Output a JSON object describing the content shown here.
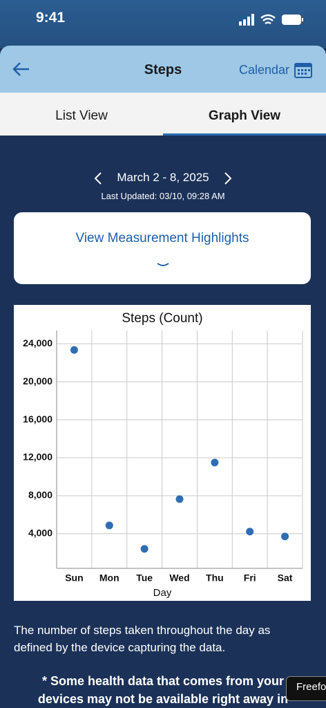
{
  "status": {
    "time": "9:41"
  },
  "header": {
    "title": "Steps",
    "calendar": "Calendar"
  },
  "tabs": [
    "List View",
    "Graph View"
  ],
  "date_range": "March 2 - 8, 2025",
  "last_updated": "Last Updated:  03/10, 09:28 AM",
  "highlights": "View Measurement Highlights",
  "description": [
    "The number of steps taken throughout the day as",
    "defined by the device capturing the data."
  ],
  "footnote": [
    "* Some health data that comes from your",
    "devices may not be available right away in"
  ],
  "tooltip": "Freefo",
  "chart_data": {
    "type": "scatter",
    "title": "Steps (Count)",
    "x_label": "Day",
    "categories": [
      "Sun",
      "Mon",
      "Tue",
      "Wed",
      "Thu",
      "Fri",
      "Sat"
    ],
    "values": [
      23350,
      4870,
      2400,
      7640,
      11490,
      4220,
      3710
    ],
    "color": "#2f6db3",
    "ylim": [
      350,
      25400
    ],
    "yticks": [
      {
        "value": 4000,
        "label": "4,000"
      },
      {
        "value": 8000,
        "label": "8,000"
      },
      {
        "value": 12000,
        "label": "12,000"
      },
      {
        "value": 16000,
        "label": "16,000"
      },
      {
        "value": 20000,
        "label": "20,000"
      },
      {
        "value": 24000,
        "label": "24,000"
      }
    ],
    "grid": true
  }
}
